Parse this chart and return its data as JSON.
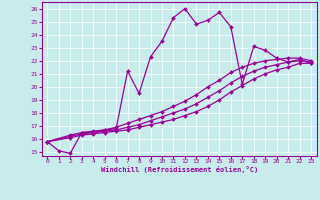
{
  "xlabel": "Windchill (Refroidissement éolien,°C)",
  "xlim": [
    -0.5,
    23.5
  ],
  "ylim": [
    14.7,
    26.5
  ],
  "xticks": [
    0,
    1,
    2,
    3,
    4,
    5,
    6,
    7,
    8,
    9,
    10,
    11,
    12,
    13,
    14,
    15,
    16,
    17,
    18,
    19,
    20,
    21,
    22,
    23
  ],
  "yticks": [
    15,
    16,
    17,
    18,
    19,
    20,
    21,
    22,
    23,
    24,
    25,
    26
  ],
  "bg_color": "#c8ecec",
  "line_color": "#990099",
  "grid_color": "#ffffff",
  "line1_x": [
    0,
    1,
    2,
    3,
    4,
    5,
    6,
    7,
    8,
    9,
    10,
    11,
    12,
    13,
    14,
    15,
    16,
    17,
    18,
    19,
    20,
    21,
    22,
    23
  ],
  "line1_y": [
    15.8,
    15.1,
    14.9,
    16.5,
    16.5,
    16.7,
    16.8,
    21.2,
    19.5,
    22.3,
    23.5,
    25.3,
    26.0,
    24.8,
    25.1,
    25.7,
    24.6,
    20.2,
    23.1,
    22.8,
    22.2,
    21.9,
    22.1,
    21.8
  ],
  "line2_x": [
    0,
    2,
    3,
    4,
    5,
    6,
    7,
    8,
    9,
    10,
    11,
    12,
    13,
    14,
    15,
    16,
    17,
    18,
    19,
    20,
    21,
    22,
    23
  ],
  "line2_y": [
    15.8,
    16.1,
    16.3,
    16.4,
    16.5,
    16.6,
    16.7,
    16.9,
    17.1,
    17.3,
    17.5,
    17.8,
    18.1,
    18.5,
    19.0,
    19.6,
    20.1,
    20.6,
    21.0,
    21.3,
    21.5,
    21.8,
    21.8
  ],
  "line3_x": [
    0,
    2,
    3,
    4,
    5,
    6,
    7,
    8,
    9,
    10,
    11,
    12,
    13,
    14,
    15,
    16,
    17,
    18,
    19,
    20,
    21,
    22,
    23
  ],
  "line3_y": [
    15.8,
    16.2,
    16.4,
    16.5,
    16.6,
    16.7,
    16.9,
    17.1,
    17.4,
    17.7,
    18.0,
    18.3,
    18.7,
    19.2,
    19.7,
    20.3,
    20.8,
    21.2,
    21.5,
    21.7,
    21.9,
    22.0,
    21.9
  ],
  "line4_x": [
    0,
    2,
    3,
    4,
    5,
    6,
    7,
    8,
    9,
    10,
    11,
    12,
    13,
    14,
    15,
    16,
    17,
    18,
    19,
    20,
    21,
    22,
    23
  ],
  "line4_y": [
    15.8,
    16.3,
    16.5,
    16.6,
    16.7,
    16.9,
    17.2,
    17.5,
    17.8,
    18.1,
    18.5,
    18.9,
    19.4,
    20.0,
    20.5,
    21.1,
    21.5,
    21.8,
    22.0,
    22.1,
    22.2,
    22.2,
    22.0
  ]
}
